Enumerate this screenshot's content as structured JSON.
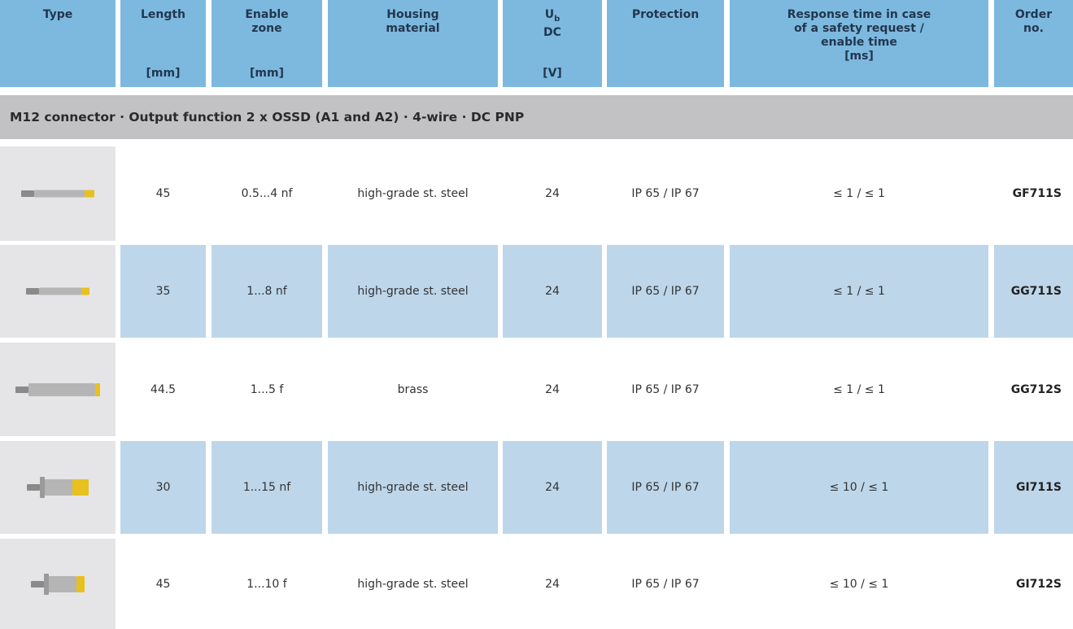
{
  "table": {
    "headers": [
      {
        "lines": [
          "Type"
        ]
      },
      {
        "lines": [
          "Length"
        ],
        "unit": "[mm]"
      },
      {
        "lines": [
          "Enable",
          "zone"
        ],
        "unit": "[mm]"
      },
      {
        "lines": [
          "Housing",
          "material"
        ]
      },
      {
        "lines": [
          "U",
          "DC"
        ],
        "subscript": "b",
        "unit": "[V]"
      },
      {
        "lines": [
          "Protection"
        ]
      },
      {
        "lines": [
          "Response time in case",
          "of a safety request /",
          "enable time",
          "[ms]"
        ]
      },
      {
        "lines": [
          "Order",
          "no."
        ]
      }
    ],
    "section": "M12 connector · Output function 2 x OSSD (A1 and A2) · 4-wire · DC PNP",
    "rows": [
      [
        45,
        "0.5...4 nf",
        "high-grade st. steel",
        24,
        "IP 65 / IP 67",
        "≤ 1 / ≤ 1",
        "GF711S"
      ],
      [
        35,
        "1...8 nf",
        "high-grade st. steel",
        24,
        "IP 65 / IP 67",
        "≤ 1 / ≤ 1",
        "GG711S"
      ],
      [
        44.5,
        "1...5 f",
        "brass",
        24,
        "IP 65 / IP 67",
        "≤ 1 / ≤ 1",
        "GG712S"
      ],
      [
        30,
        "1...15 nf",
        "high-grade st. steel",
        24,
        "IP 65 / IP 67",
        "≤ 10 / ≤ 1",
        "GI711S"
      ],
      [
        45,
        "1...10 f",
        "high-grade st. steel",
        24,
        "IP 65 / IP 67",
        "≤ 10 / ≤ 1",
        "GI712S"
      ]
    ]
  }
}
